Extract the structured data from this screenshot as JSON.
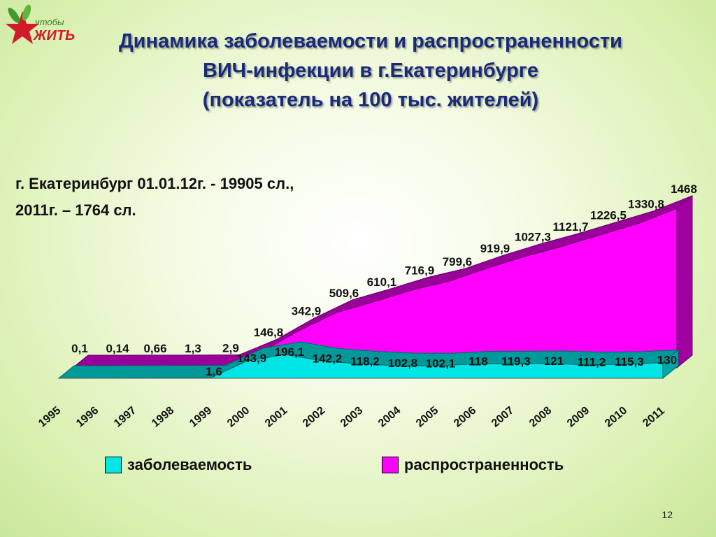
{
  "logo": {
    "line1": "чтобы",
    "line2": "ЖИТЬ"
  },
  "title": {
    "line1": "Динамика заболеваемости и распространенности",
    "line2": "ВИЧ-инфекции в  г.Екатеринбурге",
    "line3": "(показатель на 100 тыс. жителей)"
  },
  "note": {
    "line1": "г. Екатеринбург 01.01.12г. - 19905 сл.,",
    "line2": "2011г. – 1764 сл."
  },
  "colors": {
    "incidence": "#00e6e6",
    "prevalence": "#ff00ff",
    "prevalence_side": "#990099",
    "incidence_side": "#009999"
  },
  "chart_data": {
    "type": "area",
    "categories": [
      "1995",
      "1996",
      "1997",
      "1998",
      "1999",
      "2000",
      "2001",
      "2002",
      "2003",
      "2004",
      "2005",
      "2006",
      "2007",
      "2008",
      "2009",
      "2010",
      "2011"
    ],
    "series": [
      {
        "name": "заболеваемость",
        "values": [
          0.1,
          0.14,
          0.66,
          1.3,
          1.6,
          143.9,
          196.1,
          142.2,
          118.2,
          102.8,
          102.1,
          118,
          119.3,
          121,
          111.2,
          115.3,
          130
        ],
        "labels": [
          "",
          "",
          "",
          "",
          "1,6",
          "143,9",
          "196,1",
          "142,2",
          "118,2",
          "102,8",
          "102,1",
          "118",
          "119,3",
          "121",
          "111,2",
          "115,3",
          "130"
        ]
      },
      {
        "name": "распространенность",
        "values": [
          0.1,
          0.14,
          0.66,
          1.3,
          2.9,
          146.8,
          342.9,
          509.6,
          610.1,
          716.9,
          799.6,
          919.9,
          1027.3,
          1121.7,
          1226.5,
          1330.8,
          1468
        ],
        "labels": [
          "0,1",
          "0,14",
          "0,66",
          "1,3",
          "2,9",
          "146,8",
          "342,9",
          "509,6",
          "610,1",
          "716,9",
          "799,6",
          "919,9",
          "1027,3",
          "1121,7",
          "1226,5",
          "1330,8",
          "1468"
        ]
      }
    ],
    "legend": [
      "заболеваемость",
      "распространенность"
    ],
    "legend_position": "bottom"
  },
  "page_number": "12"
}
